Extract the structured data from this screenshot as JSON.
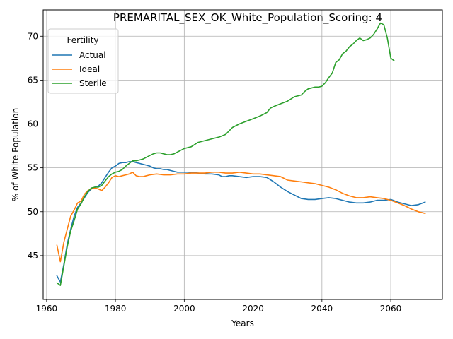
{
  "chart_data": {
    "type": "line",
    "title": "PREMARITAL_SEX_OK_White_Population_Scoring: 4",
    "xlabel": "Years",
    "ylabel": "% of White Population",
    "xlim": [
      1959,
      2075
    ],
    "ylim": [
      40,
      73
    ],
    "xticks": [
      1960,
      1980,
      2000,
      2020,
      2040,
      2060
    ],
    "yticks": [
      45,
      50,
      55,
      60,
      65,
      70
    ],
    "grid": true,
    "legend": {
      "title": "Fertility",
      "placement": "top-left"
    },
    "series": [
      {
        "name": "Actual",
        "color": "#1f77b4",
        "x": [
          1963,
          1964,
          1965,
          1966,
          1967,
          1968,
          1969,
          1970,
          1971,
          1972,
          1973,
          1974,
          1975,
          1976,
          1977,
          1978,
          1979,
          1980,
          1981,
          1982,
          1983,
          1984,
          1985,
          1986,
          1987,
          1988,
          1989,
          1990,
          1991,
          1992,
          1993,
          1994,
          1995,
          1996,
          1997,
          1998,
          1999,
          2000,
          2002,
          2004,
          2006,
          2008,
          2010,
          2011,
          2012,
          2013,
          2014,
          2016,
          2018,
          2020,
          2022,
          2024,
          2026,
          2028,
          2030,
          2032,
          2034,
          2036,
          2038,
          2040,
          2042,
          2044,
          2046,
          2048,
          2050,
          2052,
          2054,
          2056,
          2058,
          2060,
          2062,
          2064,
          2066,
          2068,
          2070
        ],
        "y": [
          42.7,
          42.0,
          44.0,
          46.3,
          48.0,
          49.5,
          50.5,
          51.0,
          51.6,
          52.2,
          52.6,
          52.8,
          52.9,
          53.3,
          53.9,
          54.5,
          55.0,
          55.2,
          55.5,
          55.6,
          55.6,
          55.7,
          55.7,
          55.6,
          55.5,
          55.4,
          55.3,
          55.2,
          55.0,
          54.9,
          54.9,
          54.8,
          54.8,
          54.7,
          54.6,
          54.5,
          54.5,
          54.5,
          54.5,
          54.4,
          54.3,
          54.3,
          54.2,
          54.0,
          54.0,
          54.1,
          54.1,
          54.0,
          53.9,
          54.0,
          54.0,
          53.9,
          53.4,
          52.8,
          52.3,
          51.9,
          51.5,
          51.4,
          51.4,
          51.5,
          51.6,
          51.5,
          51.3,
          51.1,
          51.0,
          51.0,
          51.1,
          51.3,
          51.3,
          51.4,
          51.1,
          50.9,
          50.7,
          50.8,
          51.1
        ]
      },
      {
        "name": "Ideal",
        "color": "#ff7f0e",
        "x": [
          1963,
          1964,
          1965,
          1966,
          1967,
          1968,
          1969,
          1970,
          1971,
          1972,
          1973,
          1974,
          1975,
          1976,
          1977,
          1978,
          1979,
          1980,
          1981,
          1982,
          1983,
          1984,
          1985,
          1986,
          1987,
          1988,
          1989,
          1990,
          1992,
          1994,
          1996,
          1998,
          2000,
          2002,
          2004,
          2006,
          2008,
          2010,
          2012,
          2014,
          2016,
          2018,
          2020,
          2022,
          2024,
          2026,
          2028,
          2030,
          2032,
          2034,
          2036,
          2038,
          2040,
          2042,
          2044,
          2046,
          2048,
          2050,
          2052,
          2054,
          2056,
          2058,
          2060,
          2062,
          2064,
          2066,
          2068,
          2070
        ],
        "y": [
          46.2,
          44.3,
          46.5,
          48.0,
          49.5,
          50.2,
          51.0,
          51.2,
          52.0,
          52.4,
          52.6,
          52.7,
          52.6,
          52.4,
          52.8,
          53.3,
          53.9,
          54.1,
          54.0,
          54.1,
          54.2,
          54.3,
          54.5,
          54.1,
          54.0,
          54.0,
          54.1,
          54.2,
          54.3,
          54.2,
          54.2,
          54.3,
          54.3,
          54.4,
          54.4,
          54.4,
          54.5,
          54.5,
          54.4,
          54.4,
          54.5,
          54.4,
          54.3,
          54.3,
          54.2,
          54.1,
          54.0,
          53.6,
          53.5,
          53.4,
          53.3,
          53.2,
          53.0,
          52.8,
          52.5,
          52.1,
          51.8,
          51.6,
          51.6,
          51.7,
          51.6,
          51.5,
          51.3,
          51.0,
          50.7,
          50.3,
          50.0,
          49.8
        ]
      },
      {
        "name": "Sterile",
        "color": "#2ca02c",
        "x": [
          1963,
          1964,
          1965,
          1966,
          1967,
          1968,
          1969,
          1970,
          1971,
          1972,
          1973,
          1974,
          1975,
          1976,
          1977,
          1978,
          1979,
          1980,
          1981,
          1982,
          1983,
          1984,
          1985,
          1986,
          1987,
          1988,
          1989,
          1990,
          1991,
          1992,
          1993,
          1994,
          1995,
          1996,
          1997,
          1998,
          1999,
          2000,
          2002,
          2004,
          2006,
          2008,
          2010,
          2012,
          2014,
          2016,
          2018,
          2020,
          2022,
          2024,
          2025,
          2026,
          2028,
          2030,
          2032,
          2034,
          2035,
          2036,
          2038,
          2039,
          2040,
          2041,
          2042,
          2043,
          2044,
          2045,
          2046,
          2047,
          2048,
          2049,
          2050,
          2051,
          2052,
          2053,
          2054,
          2055,
          2056,
          2057,
          2058,
          2059,
          2060,
          2061
        ],
        "y": [
          41.9,
          41.6,
          43.8,
          46.0,
          47.8,
          49.0,
          50.3,
          50.9,
          51.7,
          52.3,
          52.7,
          52.8,
          52.8,
          53.0,
          53.5,
          54.0,
          54.3,
          54.5,
          54.6,
          54.8,
          55.2,
          55.5,
          55.8,
          55.8,
          55.9,
          56.0,
          56.2,
          56.4,
          56.6,
          56.7,
          56.7,
          56.6,
          56.5,
          56.5,
          56.6,
          56.8,
          57.0,
          57.2,
          57.4,
          57.9,
          58.1,
          58.3,
          58.5,
          58.8,
          59.6,
          60.0,
          60.3,
          60.6,
          60.9,
          61.3,
          61.8,
          62.0,
          62.3,
          62.6,
          63.1,
          63.3,
          63.7,
          64.0,
          64.2,
          64.2,
          64.3,
          64.7,
          65.3,
          65.8,
          67.0,
          67.3,
          68.0,
          68.3,
          68.8,
          69.1,
          69.5,
          69.8,
          69.5,
          69.6,
          69.8,
          70.2,
          70.8,
          71.5,
          71.3,
          69.8,
          67.5,
          67.2
        ]
      }
    ]
  }
}
